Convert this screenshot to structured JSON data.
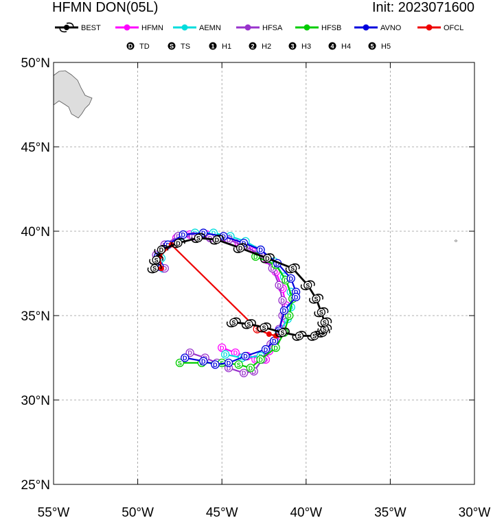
{
  "header": {
    "title": "HFMN DON(05L)",
    "init": "Init: 2023071600"
  },
  "chart_data": {
    "type": "line",
    "title": "HFMN DON(05L)",
    "xlim": [
      -55,
      -30
    ],
    "ylim": [
      25,
      50
    ],
    "grid": true,
    "x_ticks": [
      {
        "v": -55,
        "label": "55°W"
      },
      {
        "v": -50,
        "label": "50°W"
      },
      {
        "v": -45,
        "label": "45°W"
      },
      {
        "v": -40,
        "label": "40°W"
      },
      {
        "v": -35,
        "label": "35°W"
      },
      {
        "v": -30,
        "label": "30°W"
      }
    ],
    "y_ticks": [
      {
        "v": 25,
        "label": "25°N"
      },
      {
        "v": 30,
        "label": "30°N"
      },
      {
        "v": 35,
        "label": "35°N"
      },
      {
        "v": 40,
        "label": "40°N"
      },
      {
        "v": 45,
        "label": "45°N"
      },
      {
        "v": 50,
        "label": "50°N"
      }
    ],
    "legend": [
      {
        "name": "BEST",
        "color": "#000000"
      },
      {
        "name": "HFMN",
        "color": "#ff00ff"
      },
      {
        "name": "AEMN",
        "color": "#00dddd"
      },
      {
        "name": "HFSA",
        "color": "#9933cc"
      },
      {
        "name": "HFSB",
        "color": "#00cc00"
      },
      {
        "name": "AVNO",
        "color": "#0000dd"
      },
      {
        "name": "OFCL",
        "color": "#ee0000"
      }
    ],
    "intensity_legend": [
      {
        "sym": "D",
        "label": "TD"
      },
      {
        "sym": "S",
        "label": "TS"
      },
      {
        "sym": "1",
        "label": "H1"
      },
      {
        "sym": "2",
        "label": "H2"
      },
      {
        "sym": "3",
        "label": "H3"
      },
      {
        "sym": "4",
        "label": "H4"
      },
      {
        "sym": "5",
        "label": "H5"
      }
    ],
    "series": [
      {
        "name": "BEST",
        "color": "#000000",
        "marker": "hur",
        "points": [
          [
            -44.3,
            34.6
          ],
          [
            -43.4,
            34.5
          ],
          [
            -42.5,
            34.3
          ],
          [
            -41.4,
            34.0
          ],
          [
            -40.4,
            33.8
          ],
          [
            -39.5,
            33.8
          ],
          [
            -39.0,
            34.0
          ],
          [
            -38.9,
            34.2
          ],
          [
            -38.9,
            34.6
          ],
          [
            -39.1,
            35.2
          ],
          [
            -39.4,
            36.0
          ],
          [
            -39.9,
            36.8
          ],
          [
            -40.8,
            37.8
          ],
          [
            -42.3,
            38.4
          ],
          [
            -43.9,
            39.0
          ],
          [
            -45.3,
            39.5
          ],
          [
            -46.4,
            39.6
          ],
          [
            -47.6,
            39.3
          ],
          [
            -48.6,
            38.9
          ],
          [
            -48.9,
            38.3
          ],
          [
            -49.0,
            37.8
          ]
        ],
        "symbols": [
          "S",
          "S",
          "S",
          "S",
          "S",
          "S",
          "S",
          "S",
          "S",
          "S",
          "S",
          "S",
          "S",
          "D",
          "D",
          "D",
          "S",
          "D",
          "D",
          "S",
          "S"
        ]
      },
      {
        "name": "HFMN",
        "color": "#ff00ff",
        "points": [
          [
            -48.5,
            37.8
          ],
          [
            -48.8,
            38.3
          ],
          [
            -48.4,
            39.1
          ],
          [
            -47.7,
            39.6
          ],
          [
            -46.9,
            39.8
          ],
          [
            -45.9,
            39.8
          ],
          [
            -45.0,
            39.6
          ],
          [
            -44.0,
            39.3
          ],
          [
            -43.1,
            38.9
          ],
          [
            -42.3,
            38.3
          ],
          [
            -41.8,
            37.6
          ],
          [
            -41.4,
            36.6
          ],
          [
            -41.2,
            35.6
          ],
          [
            -41.2,
            34.8
          ],
          [
            -41.4,
            34.2
          ],
          [
            -41.8,
            33.5
          ],
          [
            -42.2,
            32.9
          ],
          [
            -42.4,
            32.4
          ],
          [
            -43.0,
            32.4
          ],
          [
            -43.5,
            32.6
          ],
          [
            -44.2,
            32.8
          ],
          [
            -45.0,
            33.1
          ]
        ],
        "symbols": [
          "D",
          "D",
          "D",
          "D",
          "D",
          "D",
          "D",
          "D",
          "D",
          "D",
          "D",
          "D",
          "D",
          "D",
          "D",
          "D",
          "D",
          "D",
          "D",
          "D",
          "D",
          "D"
        ]
      },
      {
        "name": "AEMN",
        "color": "#00dddd",
        "points": [
          [
            -48.5,
            37.8
          ],
          [
            -48.6,
            38.4
          ],
          [
            -48.3,
            39.2
          ],
          [
            -47.5,
            39.7
          ],
          [
            -46.6,
            39.9
          ],
          [
            -45.5,
            39.9
          ],
          [
            -44.5,
            39.7
          ],
          [
            -43.6,
            39.4
          ],
          [
            -42.7,
            38.9
          ],
          [
            -41.9,
            38.2
          ],
          [
            -41.3,
            37.3
          ],
          [
            -40.9,
            36.4
          ],
          [
            -40.9,
            35.5
          ],
          [
            -41.1,
            34.8
          ],
          [
            -41.6,
            34.0
          ],
          [
            -42.0,
            33.2
          ],
          [
            -42.7,
            32.6
          ],
          [
            -43.8,
            32.5
          ],
          [
            -44.8,
            32.7
          ]
        ],
        "symbols": [
          "D",
          "D",
          "D",
          "D",
          "D",
          "D",
          "D",
          "D",
          "D",
          "D",
          "D",
          "D",
          "D",
          "D",
          "D",
          "D",
          "D",
          "D",
          "D"
        ]
      },
      {
        "name": "HFSA",
        "color": "#9933cc",
        "points": [
          [
            -48.4,
            37.8
          ],
          [
            -48.9,
            38.6
          ],
          [
            -48.4,
            39.2
          ],
          [
            -47.6,
            39.7
          ],
          [
            -46.7,
            39.7
          ],
          [
            -45.7,
            39.6
          ],
          [
            -44.6,
            39.5
          ],
          [
            -43.6,
            39.1
          ],
          [
            -42.7,
            38.6
          ],
          [
            -42.0,
            37.8
          ],
          [
            -41.6,
            36.8
          ],
          [
            -41.4,
            35.9
          ],
          [
            -41.4,
            35.0
          ],
          [
            -41.6,
            34.2
          ],
          [
            -42.1,
            33.3
          ],
          [
            -42.6,
            32.4
          ],
          [
            -43.1,
            31.7
          ],
          [
            -43.7,
            31.6
          ],
          [
            -44.6,
            31.9
          ],
          [
            -45.3,
            32.2
          ],
          [
            -46.0,
            32.5
          ],
          [
            -46.9,
            32.8
          ]
        ],
        "symbols": [
          "D",
          "D",
          "D",
          "D",
          "D",
          "D",
          "D",
          "D",
          "D",
          "D",
          "D",
          "D",
          "D",
          "D",
          "D",
          "D",
          "D",
          "D",
          "D",
          "D",
          "D",
          "D"
        ]
      },
      {
        "name": "HFSB",
        "color": "#00cc00",
        "points": [
          [
            -43.0,
            38.5
          ],
          [
            -41.8,
            38.0
          ],
          [
            -41.2,
            37.1
          ],
          [
            -40.8,
            36.0
          ],
          [
            -41.0,
            35.0
          ],
          [
            -41.3,
            34.0
          ],
          [
            -41.8,
            33.1
          ],
          [
            -42.7,
            32.4
          ],
          [
            -43.3,
            31.9
          ],
          [
            -44.0,
            32.1
          ],
          [
            -45.0,
            32.2
          ],
          [
            -46.2,
            32.2
          ],
          [
            -47.5,
            32.2
          ]
        ],
        "symbols": [
          "D",
          "D",
          "D",
          "D",
          "D",
          "D",
          "D",
          "D",
          "D",
          "S",
          "S",
          "S",
          "S"
        ]
      },
      {
        "name": "AVNO",
        "color": "#0000dd",
        "points": [
          [
            -48.7,
            37.9
          ],
          [
            -48.8,
            38.5
          ],
          [
            -48.2,
            39.2
          ],
          [
            -47.3,
            39.8
          ],
          [
            -46.1,
            39.9
          ],
          [
            -44.9,
            39.7
          ],
          [
            -43.7,
            39.3
          ],
          [
            -42.7,
            38.9
          ],
          [
            -41.7,
            38.1
          ],
          [
            -40.9,
            37.2
          ],
          [
            -40.6,
            36.4
          ],
          [
            -40.6,
            36.1
          ],
          [
            -41.3,
            35.3
          ],
          [
            -41.6,
            34.1
          ],
          [
            -41.9,
            33.5
          ],
          [
            -42.4,
            33.0
          ],
          [
            -43.6,
            32.6
          ],
          [
            -44.6,
            32.2
          ],
          [
            -45.4,
            32.1
          ],
          [
            -46.1,
            32.3
          ],
          [
            -47.2,
            32.5
          ]
        ],
        "symbols": [
          "D",
          "D",
          "D",
          "D",
          "D",
          "D",
          "D",
          "D",
          "D",
          "D",
          "D",
          "D",
          "D",
          "D",
          "D",
          "D",
          "D",
          "D",
          "D",
          "D",
          "D"
        ]
      },
      {
        "name": "OFCL",
        "color": "#ee0000",
        "points": [
          [
            -48.6,
            37.8
          ],
          [
            -48.7,
            38.5
          ],
          [
            -48.0,
            39.2
          ],
          [
            -42.9,
            34.2
          ],
          [
            -42.2,
            33.9
          ],
          [
            -41.8,
            33.8
          ]
        ],
        "symbols": [
          "",
          "",
          "",
          "S",
          "",
          ""
        ]
      }
    ]
  }
}
